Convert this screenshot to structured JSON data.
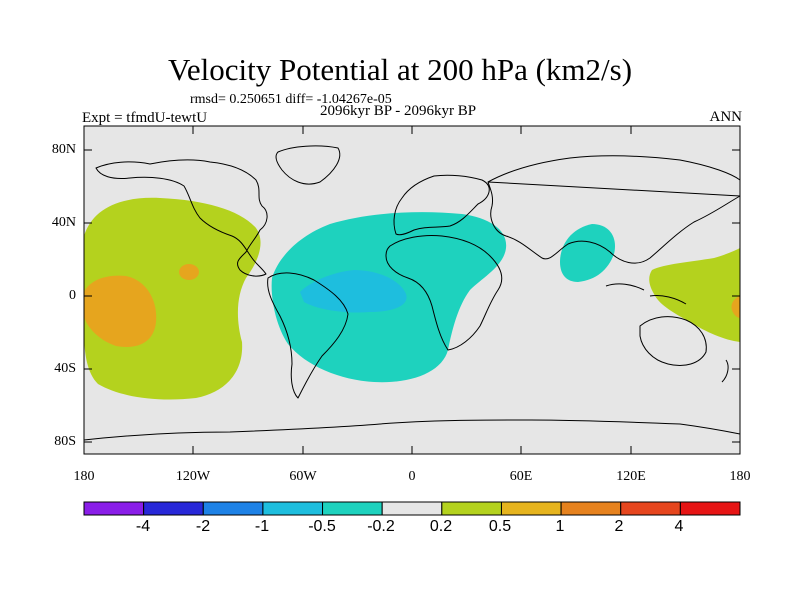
{
  "title": "Velocity Potential at 200 hPa (km2/s)",
  "stats_text": "rmsd= 0.250651 diff= -1.04267e-05",
  "experiment": "Expt = tfmdU-tewtU",
  "period": "2096kyr BP - 2096kyr BP",
  "season": "ANN",
  "lat_labels": [
    "80N",
    "40N",
    "0",
    "40S",
    "80S"
  ],
  "lon_labels": [
    "180",
    "120W",
    "60W",
    "0",
    "60E",
    "120E",
    "180"
  ],
  "colorbar": {
    "labels": [
      "-4",
      "-2",
      "-1",
      "-0.5",
      "-0.2",
      "0.2",
      "0.5",
      "1",
      "2",
      "4"
    ],
    "colors": [
      "#8a1ee8",
      "#2828d8",
      "#1e82e6",
      "#1ebede",
      "#1ed2be",
      "#e6e6e6",
      "#b4d21e",
      "#e6b41e",
      "#e6821e",
      "#e6461e",
      "#e61414"
    ]
  },
  "fill_colors": {
    "land_bg": "#e6e6e6",
    "pos_weak": "#b4d21e",
    "pos_mid": "#e6a51e",
    "neg_weak": "#1ed2be",
    "neg_mid": "#1ebede",
    "pos_strong": "#e6821e"
  }
}
